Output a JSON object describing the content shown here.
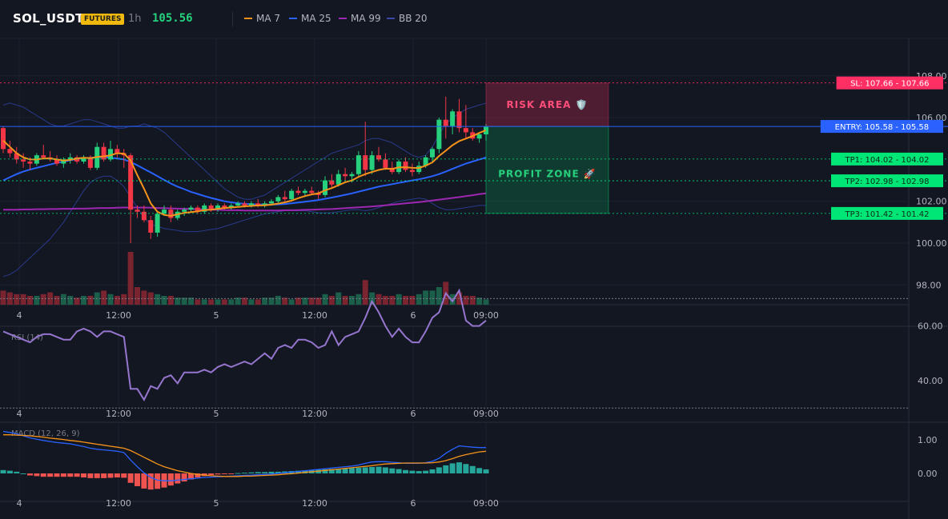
{
  "header": {
    "symbol": "SOL_USDT",
    "badge": "FUTURES",
    "timeframe": "1h",
    "price": "105.56",
    "legend": [
      {
        "label": "MA 7",
        "color": "#f7931a"
      },
      {
        "label": "MA 25",
        "color": "#2962ff"
      },
      {
        "label": "MA 99",
        "color": "#9c27b0"
      },
      {
        "label": "BB 20",
        "color": "#1e3a8a"
      }
    ]
  },
  "colors": {
    "up": "#26d07c",
    "down": "#f23645",
    "vol_up": "#1b5e4a",
    "vol_down": "#7a2430",
    "rsi": "#9575cd",
    "macd": "#2962ff",
    "signal": "#f7931a",
    "hist_up": "#26a69a",
    "hist_down": "#ef5350",
    "sl": "#ff2e63",
    "entry": "#2962ff",
    "tp": "#00e676"
  },
  "chart_data": [
    {
      "type": "candlestick",
      "x_labels": [
        "4",
        "12:00",
        "5",
        "12:00",
        "6",
        "09:00"
      ],
      "y_ticks": [
        "108.00",
        "106.00",
        "102.00",
        "100.00",
        "98.00"
      ],
      "ylim": [
        97,
        109
      ],
      "candles": [
        [
          105.5,
          105.6,
          104.3,
          104.5
        ],
        [
          104.5,
          104.9,
          104.1,
          104.3
        ],
        [
          104.3,
          104.6,
          103.8,
          104.0
        ],
        [
          104.0,
          104.3,
          103.6,
          103.9
        ],
        [
          103.9,
          104.1,
          103.5,
          103.8
        ],
        [
          103.8,
          104.3,
          103.7,
          104.2
        ],
        [
          104.2,
          104.7,
          104.0,
          104.1
        ],
        [
          104.1,
          104.4,
          103.9,
          104.0
        ],
        [
          104.0,
          104.2,
          103.7,
          103.8
        ],
        [
          103.8,
          104.1,
          103.6,
          104.0
        ],
        [
          104.0,
          104.3,
          103.8,
          104.1
        ],
        [
          104.1,
          104.2,
          103.8,
          103.9
        ],
        [
          103.9,
          104.2,
          103.8,
          104.1
        ],
        [
          104.1,
          104.2,
          103.5,
          103.6
        ],
        [
          103.6,
          104.8,
          103.5,
          104.6
        ],
        [
          104.6,
          104.8,
          103.9,
          104.0
        ],
        [
          104.0,
          104.9,
          103.9,
          104.5
        ],
        [
          104.5,
          104.7,
          104.1,
          104.3
        ],
        [
          104.3,
          104.5,
          103.6,
          104.2
        ],
        [
          104.2,
          104.3,
          100.0,
          101.6
        ],
        [
          101.6,
          101.8,
          101.2,
          101.5
        ],
        [
          101.5,
          101.8,
          101.0,
          101.1
        ],
        [
          101.1,
          101.3,
          100.2,
          100.5
        ],
        [
          100.5,
          101.5,
          100.3,
          101.4
        ],
        [
          101.4,
          101.8,
          101.3,
          101.6
        ],
        [
          101.6,
          101.8,
          101.0,
          101.2
        ],
        [
          101.2,
          101.6,
          101.1,
          101.5
        ],
        [
          101.5,
          101.7,
          101.3,
          101.6
        ],
        [
          101.6,
          101.8,
          101.5,
          101.7
        ],
        [
          101.7,
          101.8,
          101.4,
          101.5
        ],
        [
          101.5,
          101.9,
          101.4,
          101.8
        ],
        [
          101.8,
          101.9,
          101.5,
          101.6
        ],
        [
          101.6,
          101.9,
          101.5,
          101.8
        ],
        [
          101.8,
          101.9,
          101.6,
          101.7
        ],
        [
          101.7,
          101.9,
          101.6,
          101.8
        ],
        [
          101.8,
          102.0,
          101.7,
          101.9
        ],
        [
          101.9,
          102.0,
          101.7,
          101.8
        ],
        [
          101.8,
          102.0,
          101.7,
          101.9
        ],
        [
          101.9,
          102.1,
          101.7,
          101.8
        ],
        [
          101.8,
          102.0,
          101.7,
          101.9
        ],
        [
          101.9,
          102.1,
          101.8,
          102.0
        ],
        [
          102.0,
          102.3,
          101.9,
          102.2
        ],
        [
          102.2,
          102.5,
          102.0,
          102.1
        ],
        [
          102.1,
          102.6,
          102.0,
          102.5
        ],
        [
          102.5,
          102.7,
          102.3,
          102.4
        ],
        [
          102.4,
          102.6,
          102.2,
          102.5
        ],
        [
          102.5,
          102.7,
          102.3,
          102.4
        ],
        [
          102.4,
          102.5,
          102.1,
          102.3
        ],
        [
          102.3,
          103.2,
          102.2,
          103.0
        ],
        [
          103.0,
          103.3,
          102.6,
          102.8
        ],
        [
          102.8,
          103.5,
          102.7,
          103.3
        ],
        [
          103.3,
          103.6,
          103.0,
          103.2
        ],
        [
          103.2,
          103.4,
          102.9,
          103.3
        ],
        [
          103.3,
          104.4,
          103.2,
          104.2
        ],
        [
          104.2,
          105.8,
          103.2,
          103.5
        ],
        [
          103.5,
          104.4,
          103.3,
          104.2
        ],
        [
          104.2,
          104.6,
          103.9,
          104.0
        ],
        [
          104.0,
          104.3,
          103.5,
          103.6
        ],
        [
          103.6,
          103.9,
          103.3,
          103.4
        ],
        [
          103.4,
          104.0,
          103.3,
          103.9
        ],
        [
          103.9,
          104.1,
          103.4,
          103.5
        ],
        [
          103.5,
          103.8,
          103.2,
          103.4
        ],
        [
          103.4,
          103.9,
          103.3,
          103.7
        ],
        [
          103.7,
          104.2,
          103.6,
          104.1
        ],
        [
          104.1,
          104.6,
          103.9,
          104.5
        ],
        [
          104.5,
          106.0,
          104.3,
          105.9
        ],
        [
          105.9,
          107.0,
          105.0,
          105.6
        ],
        [
          105.6,
          106.4,
          105.2,
          106.3
        ],
        [
          106.3,
          106.9,
          105.3,
          105.5
        ],
        [
          105.5,
          106.6,
          105.0,
          105.3
        ],
        [
          105.3,
          105.5,
          104.9,
          105.0
        ],
        [
          105.0,
          105.3,
          104.8,
          105.2
        ],
        [
          105.2,
          105.7,
          104.9,
          105.56
        ]
      ],
      "volume_dir": "same as candles",
      "volume": [
        8,
        7,
        6,
        6,
        5,
        5,
        6,
        7,
        5,
        6,
        5,
        4,
        5,
        5,
        7,
        8,
        6,
        5,
        6,
        30,
        10,
        8,
        7,
        6,
        5,
        5,
        4,
        4,
        4,
        3,
        3,
        3,
        3,
        3,
        3,
        4,
        4,
        3,
        3,
        4,
        4,
        5,
        4,
        3,
        4,
        4,
        4,
        4,
        6,
        5,
        7,
        5,
        5,
        6,
        14,
        7,
        6,
        5,
        5,
        6,
        5,
        5,
        6,
        8,
        8,
        10,
        13,
        6,
        7,
        5,
        5,
        4,
        3
      ],
      "ma7_y": [
        104.9,
        104.6,
        104.3,
        104.1,
        104.0,
        104.0,
        104.05,
        104.05,
        104.0,
        103.95,
        103.98,
        104.05,
        104.08,
        104.06,
        104.12,
        104.15,
        104.2,
        104.3,
        104.28,
        103.95,
        103.25,
        102.6,
        101.9,
        101.5,
        101.35,
        101.3,
        101.38,
        101.45,
        101.48,
        101.52,
        101.58,
        101.6,
        101.64,
        101.68,
        101.7,
        101.73,
        101.76,
        101.78,
        101.8,
        101.81,
        101.84,
        101.89,
        101.95,
        102.03,
        102.15,
        102.25,
        102.33,
        102.38,
        102.52,
        102.63,
        102.77,
        102.91,
        103.0,
        103.17,
        103.3,
        103.4,
        103.5,
        103.56,
        103.55,
        103.62,
        103.63,
        103.6,
        103.59,
        103.7,
        103.86,
        104.17,
        104.42,
        104.68,
        104.88,
        105.0,
        105.12,
        105.27,
        105.4
      ],
      "ma25_y": [
        103.0,
        103.15,
        103.3,
        103.42,
        103.52,
        103.6,
        103.68,
        103.76,
        103.84,
        103.9,
        103.96,
        104.02,
        104.06,
        104.08,
        104.1,
        104.1,
        104.08,
        104.05,
        104.0,
        103.88,
        103.72,
        103.55,
        103.38,
        103.2,
        103.02,
        102.85,
        102.7,
        102.58,
        102.45,
        102.35,
        102.25,
        102.16,
        102.08,
        102.0,
        101.95,
        101.91,
        101.88,
        101.86,
        101.85,
        101.84,
        101.84,
        101.85,
        101.87,
        101.9,
        101.94,
        101.98,
        102.02,
        102.06,
        102.12,
        102.18,
        102.24,
        102.31,
        102.38,
        102.46,
        102.54,
        102.62,
        102.7,
        102.76,
        102.82,
        102.88,
        102.94,
        103.0,
        103.05,
        103.12,
        103.2,
        103.3,
        103.42,
        103.55,
        103.68,
        103.8,
        103.9,
        104.0,
        104.09
      ],
      "ma99_y": [
        101.6,
        101.6,
        101.6,
        101.61,
        101.61,
        101.62,
        101.62,
        101.63,
        101.63,
        101.64,
        101.64,
        101.65,
        101.65,
        101.66,
        101.67,
        101.68,
        101.68,
        101.69,
        101.7,
        101.7,
        101.7,
        101.7,
        101.69,
        101.68,
        101.67,
        101.66,
        101.65,
        101.64,
        101.63,
        101.62,
        101.61,
        101.6,
        101.59,
        101.58,
        101.57,
        101.57,
        101.56,
        101.56,
        101.56,
        101.56,
        101.56,
        101.56,
        101.57,
        101.57,
        101.58,
        101.59,
        101.6,
        101.61,
        101.62,
        101.63,
        101.65,
        101.67,
        101.69,
        101.71,
        101.73,
        101.75,
        101.78,
        101.81,
        101.84,
        101.87,
        101.9,
        101.93,
        101.96,
        102.0,
        102.04,
        102.08,
        102.12,
        102.16,
        102.2,
        102.25,
        102.29,
        102.34,
        102.38
      ],
      "bb_upper": [
        106.6,
        106.7,
        106.6,
        106.5,
        106.3,
        106.1,
        105.9,
        105.7,
        105.6,
        105.6,
        105.7,
        105.8,
        105.9,
        105.9,
        105.8,
        105.7,
        105.6,
        105.5,
        105.5,
        105.6,
        105.6,
        105.7,
        105.6,
        105.5,
        105.3,
        105.0,
        104.7,
        104.4,
        104.1,
        103.8,
        103.5,
        103.2,
        102.9,
        102.6,
        102.4,
        102.2,
        102.1,
        102.1,
        102.2,
        102.3,
        102.5,
        102.7,
        102.9,
        103.1,
        103.3,
        103.5,
        103.7,
        103.9,
        104.1,
        104.3,
        104.4,
        104.5,
        104.6,
        104.7,
        104.9,
        105.0,
        105.0,
        104.9,
        104.8,
        104.6,
        104.4,
        104.2,
        104.1,
        104.2,
        104.6,
        105.2,
        105.7,
        106.0,
        106.2,
        106.4,
        106.5,
        106.6,
        106.7
      ],
      "bb_lower": [
        98.4,
        98.5,
        98.7,
        99.0,
        99.3,
        99.6,
        99.9,
        100.2,
        100.6,
        101.0,
        101.5,
        102.0,
        102.5,
        102.9,
        103.1,
        103.2,
        103.2,
        103.0,
        102.7,
        102.2,
        101.7,
        101.2,
        100.9,
        100.8,
        100.7,
        100.65,
        100.6,
        100.55,
        100.55,
        100.55,
        100.6,
        100.65,
        100.7,
        100.8,
        100.9,
        101.0,
        101.1,
        101.2,
        101.3,
        101.4,
        101.45,
        101.5,
        101.55,
        101.55,
        101.55,
        101.55,
        101.5,
        101.45,
        101.45,
        101.45,
        101.5,
        101.55,
        101.6,
        101.6,
        101.55,
        101.6,
        101.7,
        101.8,
        101.9,
        102.0,
        102.05,
        102.1,
        102.15,
        102.1,
        101.9,
        101.7,
        101.6,
        101.6,
        101.65,
        101.7,
        101.75,
        101.8,
        101.8
      ],
      "levels": [
        {
          "name": "SL",
          "label": "SL: 107.66",
          "value": 107.66
        },
        {
          "name": "ENTRY",
          "label": "ENTRY: 105.58",
          "value": 105.58
        },
        {
          "name": "TP1",
          "label": "TP1: 104.02",
          "value": 104.02
        },
        {
          "name": "TP2",
          "label": "TP2: 102.98",
          "value": 102.98
        },
        {
          "name": "TP3",
          "label": "TP3: 101.42",
          "value": 101.42
        }
      ],
      "zones": {
        "risk": "RISK AREA 🛡️",
        "profit": "PROFIT ZONE 🚀"
      }
    },
    {
      "type": "line",
      "name": "RSI (14)",
      "y_ticks": [
        "60.00",
        "40.00"
      ],
      "ylim": [
        25,
        78
      ],
      "levels": [
        70,
        30
      ],
      "values": [
        58,
        57,
        56,
        55,
        54,
        56,
        57,
        57,
        56,
        55,
        55,
        58,
        59,
        58,
        56,
        58,
        58,
        57,
        56,
        37,
        37,
        33,
        38,
        37,
        41,
        42,
        39,
        43,
        43,
        43,
        44,
        43,
        45,
        46,
        45,
        46,
        47,
        46,
        48,
        50,
        48,
        52,
        53,
        52,
        55,
        55,
        54,
        52,
        53,
        58,
        53,
        56,
        57,
        58,
        63,
        69,
        65,
        60,
        56,
        59,
        56,
        54,
        54,
        58,
        63,
        65,
        72,
        69,
        73,
        62,
        60,
        60,
        62
      ]
    },
    {
      "type": "line",
      "name": "MACD (12, 26, 9)",
      "y_ticks": [
        "1.00",
        "0.00"
      ],
      "ylim": [
        -0.55,
        1.3
      ],
      "macd": [
        1.25,
        1.22,
        1.18,
        1.12,
        1.06,
        1.02,
        0.98,
        0.95,
        0.92,
        0.9,
        0.88,
        0.84,
        0.8,
        0.75,
        0.72,
        0.7,
        0.68,
        0.66,
        0.62,
        0.4,
        0.2,
        0.02,
        -0.12,
        -0.2,
        -0.22,
        -0.22,
        -0.2,
        -0.18,
        -0.16,
        -0.14,
        -0.12,
        -0.11,
        -0.1,
        -0.09,
        -0.08,
        -0.07,
        -0.06,
        -0.05,
        -0.04,
        -0.03,
        -0.02,
        0.0,
        0.02,
        0.04,
        0.06,
        0.08,
        0.1,
        0.12,
        0.14,
        0.16,
        0.18,
        0.2,
        0.22,
        0.25,
        0.3,
        0.34,
        0.35,
        0.35,
        0.33,
        0.32,
        0.3,
        0.3,
        0.3,
        0.32,
        0.36,
        0.45,
        0.6,
        0.72,
        0.82,
        0.8,
        0.78,
        0.77,
        0.77
      ],
      "signal": [
        1.15,
        1.15,
        1.14,
        1.13,
        1.12,
        1.1,
        1.08,
        1.05,
        1.03,
        1.01,
        0.98,
        0.96,
        0.93,
        0.9,
        0.87,
        0.84,
        0.81,
        0.78,
        0.75,
        0.68,
        0.58,
        0.48,
        0.38,
        0.28,
        0.2,
        0.14,
        0.08,
        0.04,
        0.0,
        -0.03,
        -0.05,
        -0.07,
        -0.08,
        -0.09,
        -0.09,
        -0.09,
        -0.08,
        -0.08,
        -0.07,
        -0.06,
        -0.05,
        -0.04,
        -0.02,
        -0.01,
        0.01,
        0.03,
        0.05,
        0.07,
        0.09,
        0.11,
        0.13,
        0.15,
        0.17,
        0.19,
        0.21,
        0.23,
        0.26,
        0.28,
        0.29,
        0.3,
        0.31,
        0.31,
        0.31,
        0.31,
        0.32,
        0.34,
        0.38,
        0.44,
        0.51,
        0.56,
        0.6,
        0.64,
        0.66
      ],
      "hist": [
        0.1,
        0.08,
        0.05,
        0.0,
        -0.06,
        -0.08,
        -0.1,
        -0.1,
        -0.1,
        -0.1,
        -0.1,
        -0.1,
        -0.12,
        -0.14,
        -0.14,
        -0.14,
        -0.13,
        -0.12,
        -0.13,
        -0.28,
        -0.38,
        -0.45,
        -0.48,
        -0.46,
        -0.42,
        -0.36,
        -0.3,
        -0.24,
        -0.18,
        -0.12,
        -0.08,
        -0.05,
        -0.03,
        -0.02,
        -0.01,
        0.01,
        0.02,
        0.03,
        0.04,
        0.04,
        0.05,
        0.05,
        0.06,
        0.07,
        0.08,
        0.09,
        0.1,
        0.11,
        0.12,
        0.13,
        0.14,
        0.15,
        0.16,
        0.17,
        0.18,
        0.19,
        0.2,
        0.18,
        0.15,
        0.13,
        0.1,
        0.08,
        0.07,
        0.08,
        0.12,
        0.18,
        0.24,
        0.3,
        0.33,
        0.28,
        0.22,
        0.16,
        0.12
      ]
    }
  ]
}
